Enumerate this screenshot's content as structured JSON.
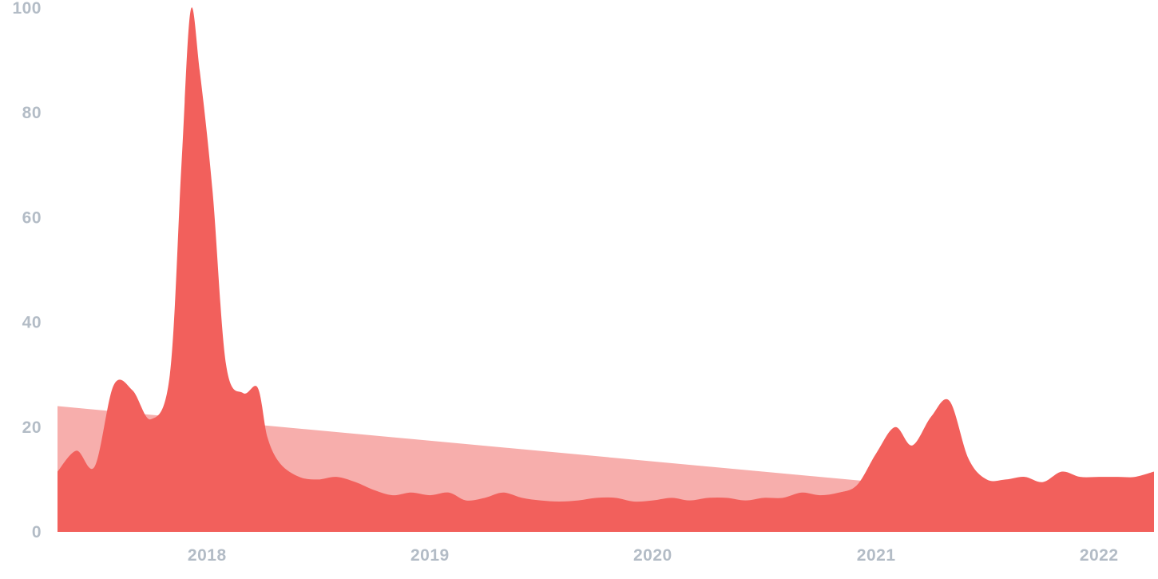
{
  "chart_data": {
    "type": "area",
    "title": "",
    "xlabel": "",
    "ylabel": "",
    "ylim": [
      0,
      100
    ],
    "xlim": [
      "2017-05-01",
      "2022-04-01"
    ],
    "grid": false,
    "legend": "none",
    "y_ticks": [
      {
        "value": 0,
        "label": "0"
      },
      {
        "value": 20,
        "label": "20"
      },
      {
        "value": 40,
        "label": "40"
      },
      {
        "value": 60,
        "label": "60"
      },
      {
        "value": 80,
        "label": "80"
      },
      {
        "value": 100,
        "label": "100"
      }
    ],
    "x_ticks": [
      {
        "value": "2018-01-01",
        "label": "2018"
      },
      {
        "value": "2019-01-01",
        "label": "2019"
      },
      {
        "value": "2020-01-01",
        "label": "2020"
      },
      {
        "value": "2021-01-01",
        "label": "2021"
      },
      {
        "value": "2022-01-01",
        "label": "2022"
      }
    ],
    "colors": {
      "series": "#f2605c",
      "trend": "#f7aeac",
      "tick_label": "#b3bcc6"
    },
    "series": [
      {
        "points": [
          [
            "2017-05-01",
            11.5
          ],
          [
            "2017-06-01",
            15.5
          ],
          [
            "2017-07-01",
            12.5
          ],
          [
            "2017-08-01",
            28
          ],
          [
            "2017-09-01",
            27
          ],
          [
            "2017-10-01",
            21.5
          ],
          [
            "2017-11-01",
            30
          ],
          [
            "2017-11-20",
            70
          ],
          [
            "2017-12-05",
            99.5
          ],
          [
            "2017-12-20",
            88
          ],
          [
            "2018-01-10",
            65
          ],
          [
            "2018-02-01",
            32
          ],
          [
            "2018-03-01",
            26.5
          ],
          [
            "2018-03-25",
            27.5
          ],
          [
            "2018-04-10",
            18
          ],
          [
            "2018-05-01",
            13
          ],
          [
            "2018-06-01",
            10.5
          ],
          [
            "2018-07-01",
            10
          ],
          [
            "2018-08-01",
            10.5
          ],
          [
            "2018-09-01",
            9.5
          ],
          [
            "2018-10-01",
            8
          ],
          [
            "2018-11-01",
            7
          ],
          [
            "2018-12-01",
            7.5
          ],
          [
            "2019-01-01",
            7
          ],
          [
            "2019-02-01",
            7.5
          ],
          [
            "2019-03-01",
            6
          ],
          [
            "2019-04-01",
            6.5
          ],
          [
            "2019-05-01",
            7.5
          ],
          [
            "2019-06-01",
            6.5
          ],
          [
            "2019-07-01",
            6
          ],
          [
            "2019-08-01",
            5.8
          ],
          [
            "2019-09-01",
            6
          ],
          [
            "2019-10-01",
            6.5
          ],
          [
            "2019-11-01",
            6.5
          ],
          [
            "2019-12-01",
            5.8
          ],
          [
            "2020-01-01",
            6
          ],
          [
            "2020-02-01",
            6.5
          ],
          [
            "2020-03-01",
            6
          ],
          [
            "2020-04-01",
            6.5
          ],
          [
            "2020-05-01",
            6.5
          ],
          [
            "2020-06-01",
            6
          ],
          [
            "2020-07-01",
            6.5
          ],
          [
            "2020-08-01",
            6.5
          ],
          [
            "2020-09-01",
            7.5
          ],
          [
            "2020-10-01",
            7
          ],
          [
            "2020-11-01",
            7.5
          ],
          [
            "2020-12-01",
            9
          ],
          [
            "2021-01-01",
            15
          ],
          [
            "2021-02-01",
            20
          ],
          [
            "2021-03-01",
            16.5
          ],
          [
            "2021-04-01",
            22
          ],
          [
            "2021-05-01",
            25
          ],
          [
            "2021-06-01",
            14
          ],
          [
            "2021-07-01",
            10
          ],
          [
            "2021-08-01",
            10
          ],
          [
            "2021-09-01",
            10.5
          ],
          [
            "2021-10-01",
            9.5
          ],
          [
            "2021-11-01",
            11.5
          ],
          [
            "2021-12-01",
            10.5
          ],
          [
            "2022-01-01",
            10.5
          ],
          [
            "2022-02-01",
            10.5
          ],
          [
            "2022-03-01",
            10.5
          ],
          [
            "2022-04-01",
            11.5
          ]
        ]
      }
    ],
    "trendline": {
      "start": [
        "2017-05-01",
        24
      ],
      "end": [
        "2021-01-01",
        9.5
      ]
    }
  }
}
